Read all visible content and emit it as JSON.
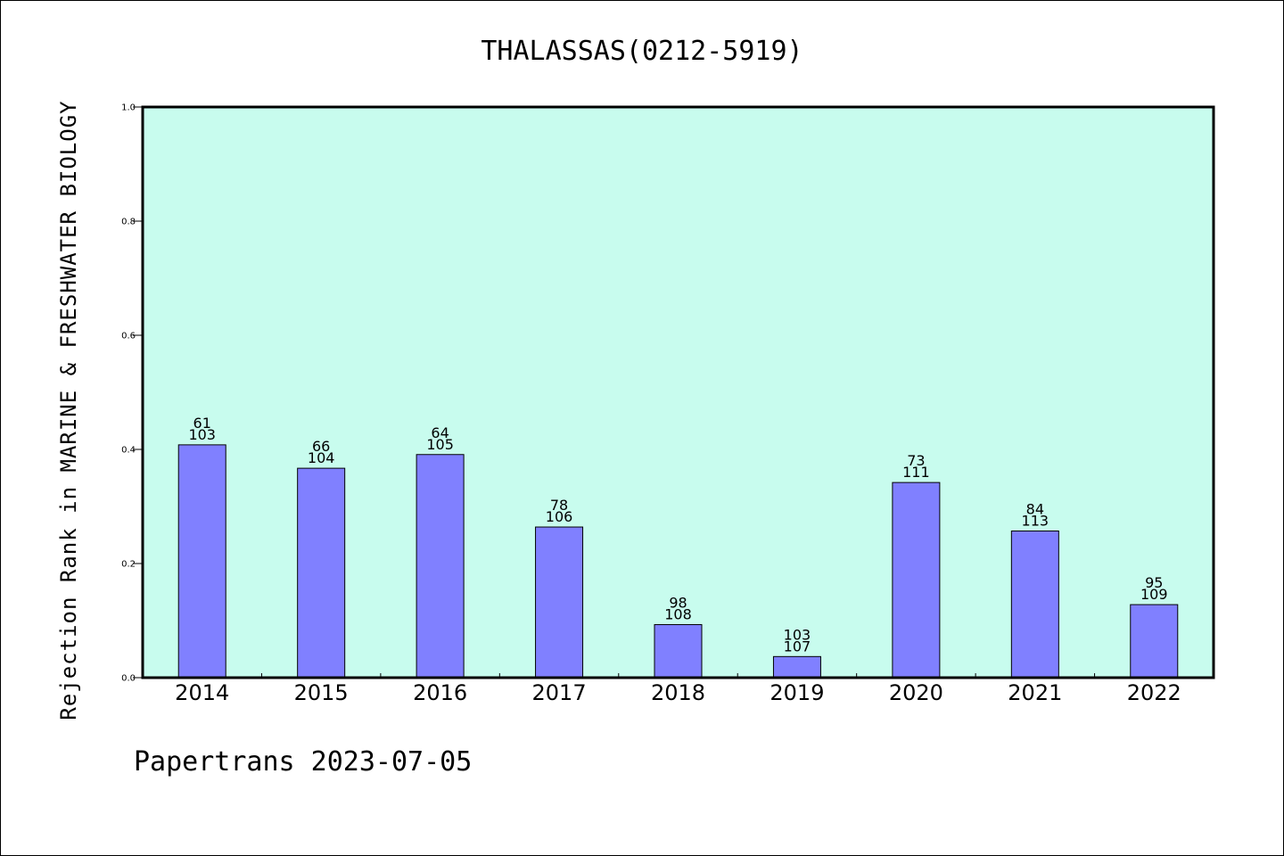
{
  "chart_data": {
    "type": "bar",
    "title": "THALASSAS(0212-5919)",
    "ylabel": "Rejection Rank in MARINE & FRESHWATER BIOLOGY",
    "xlabel": "",
    "categories": [
      "2014",
      "2015",
      "2016",
      "2017",
      "2018",
      "2019",
      "2020",
      "2021",
      "2022"
    ],
    "values": [
      0.408,
      0.367,
      0.391,
      0.264,
      0.093,
      0.037,
      0.342,
      0.257,
      0.128
    ],
    "label_top": [
      "61",
      "66",
      "64",
      "78",
      "98",
      "103",
      "73",
      "84",
      "95"
    ],
    "label_bottom": [
      "103",
      "104",
      "105",
      "106",
      "108",
      "107",
      "111",
      "113",
      "109"
    ],
    "ylim": [
      0,
      1.0
    ],
    "yticks": [
      "0.0",
      "0.2",
      "0.4",
      "0.6",
      "0.8",
      "1.0"
    ],
    "grid": false,
    "colors": {
      "plot_background": "#c8fcee",
      "bar_fill": "#8080ff",
      "bar_stroke": "#000000"
    }
  },
  "footer": "Papertrans 2023-07-05"
}
